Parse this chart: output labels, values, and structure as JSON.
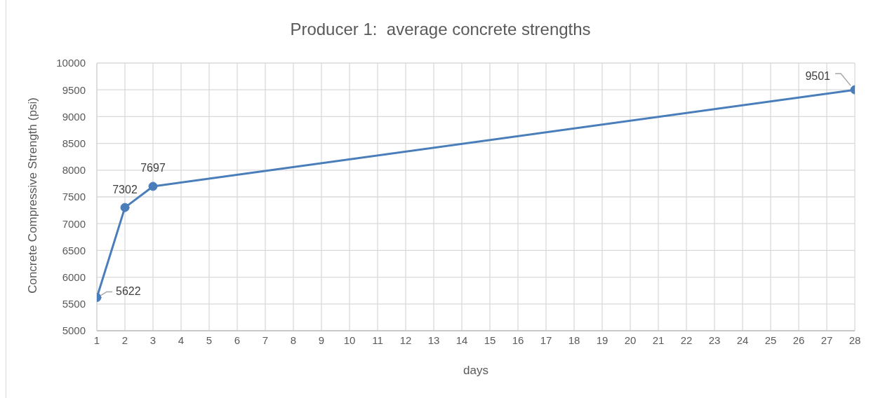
{
  "chart_data": {
    "type": "line",
    "title": "Producer 1:  average concrete strengths",
    "xlabel": "days",
    "ylabel": "Concrete Compressive Strength (psi)",
    "x": [
      1,
      2,
      3,
      28
    ],
    "values": [
      5622,
      7302,
      7697,
      9501
    ],
    "color": "#4a7ebb",
    "xlim": [
      1,
      28
    ],
    "xticks": [
      1,
      2,
      3,
      4,
      5,
      6,
      7,
      8,
      9,
      10,
      11,
      12,
      13,
      14,
      15,
      16,
      17,
      18,
      19,
      20,
      21,
      22,
      23,
      24,
      25,
      26,
      27,
      28
    ],
    "ylim": [
      5000,
      10000
    ],
    "yticks": [
      5000,
      5500,
      6000,
      6500,
      7000,
      7500,
      8000,
      8500,
      9000,
      9500,
      10000
    ],
    "grid": true,
    "marker": "circle",
    "line_style": "solid",
    "data_labels": true
  }
}
